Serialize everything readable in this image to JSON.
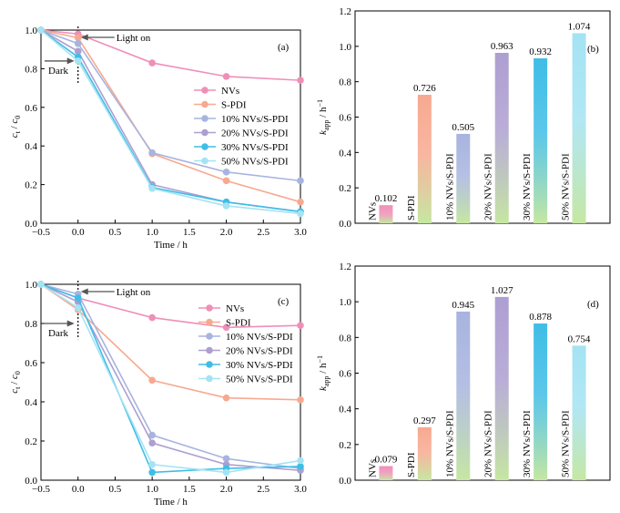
{
  "colors": {
    "NVs": "#ef8fb8",
    "S-PDI": "#f7a990",
    "10% NVs/S-PDI": "#a8b4df",
    "20% NVs/S-PDI": "#ad9fd1",
    "30% NVs/S-PDI": "#3fbde6",
    "50% NVs/S-PDI": "#a4e3f3",
    "bar_bottom": "#c6e7a2"
  },
  "chart_data": [
    {
      "id": "a",
      "panel_label": "(a)",
      "type": "line",
      "xlabel": "Time / h",
      "ylabel_main": "c",
      "ylabel_sub1": "t",
      "ylabel_sep": " / ",
      "ylabel_main2": "c",
      "ylabel_sub2": "0",
      "xlim": [
        -0.5,
        3.0
      ],
      "ylim": [
        0,
        1.0
      ],
      "xticks": [
        "−0.5",
        "0.0",
        "0.5",
        "1.0",
        "1.5",
        "2.0",
        "2.5",
        "3.0"
      ],
      "xtick_values": [
        -0.5,
        0,
        0.5,
        1,
        1.5,
        2,
        2.5,
        3
      ],
      "yticks": [
        "0.0",
        "0.2",
        "0.4",
        "0.6",
        "0.8",
        "1.0"
      ],
      "ytick_values": [
        0,
        0.2,
        0.4,
        0.6,
        0.8,
        1.0
      ],
      "x": [
        -0.5,
        0,
        1,
        2,
        3
      ],
      "annotations": {
        "light_on": "Light on",
        "dark": "Dark"
      },
      "series": [
        {
          "name": "NVs",
          "values": [
            1.0,
            0.98,
            0.83,
            0.76,
            0.74
          ]
        },
        {
          "name": "S-PDI",
          "values": [
            1.0,
            0.96,
            0.36,
            0.22,
            0.11
          ]
        },
        {
          "name": "10% NVs/S-PDI",
          "values": [
            1.0,
            0.93,
            0.365,
            0.265,
            0.22
          ]
        },
        {
          "name": "20% NVs/S-PDI",
          "values": [
            1.0,
            0.89,
            0.2,
            0.11,
            0.06
          ]
        },
        {
          "name": "30% NVs/S-PDI",
          "values": [
            1.0,
            0.86,
            0.185,
            0.11,
            0.06
          ]
        },
        {
          "name": "50% NVs/S-PDI",
          "values": [
            1.0,
            0.84,
            0.18,
            0.09,
            0.05
          ]
        }
      ]
    },
    {
      "id": "b",
      "panel_label": "(b)",
      "type": "bar",
      "ylabel_main": "k",
      "ylabel_sub": "app",
      "ylabel_unit": " / h",
      "ylabel_sup": "−1",
      "ylim": [
        0,
        1.2
      ],
      "yticks": [
        "0.0",
        "0.2",
        "0.4",
        "0.6",
        "0.8",
        "1.0",
        "1.2"
      ],
      "ytick_values": [
        0,
        0.2,
        0.4,
        0.6,
        0.8,
        1.0,
        1.2
      ],
      "categories": [
        "NVs",
        "S-PDI",
        "10% NVs/S-PDI",
        "20% NVs/S-PDI",
        "30% NVs/S-PDI",
        "50% NVs/S-PDI"
      ],
      "values": [
        0.102,
        0.726,
        0.505,
        0.963,
        0.932,
        1.074
      ],
      "value_labels": [
        "0.102",
        "0.726",
        "0.505",
        "0.963",
        "0.932",
        "1.074"
      ]
    },
    {
      "id": "c",
      "panel_label": "(c)",
      "type": "line",
      "xlabel": "Time / h",
      "ylabel_main": "c",
      "ylabel_sub1": "t",
      "ylabel_sep": " / ",
      "ylabel_main2": "c",
      "ylabel_sub2": "0",
      "xlim": [
        -0.5,
        3.0
      ],
      "ylim": [
        0,
        1.0
      ],
      "xticks": [
        "−0.5",
        "0.0",
        "0.5",
        "1.0",
        "1.5",
        "2.0",
        "2.5",
        "3.0"
      ],
      "xtick_values": [
        -0.5,
        0,
        0.5,
        1,
        1.5,
        2,
        2.5,
        3
      ],
      "yticks": [
        "0.0",
        "0.2",
        "0.4",
        "0.6",
        "0.8",
        "1.0"
      ],
      "ytick_values": [
        0,
        0.2,
        0.4,
        0.6,
        0.8,
        1.0
      ],
      "x": [
        -0.5,
        0,
        1,
        2,
        3
      ],
      "annotations": {
        "light_on": "Light on",
        "dark": "Dark"
      },
      "series": [
        {
          "name": "NVs",
          "values": [
            1.0,
            0.93,
            0.83,
            0.78,
            0.79
          ]
        },
        {
          "name": "S-PDI",
          "values": [
            1.0,
            0.87,
            0.51,
            0.42,
            0.41
          ]
        },
        {
          "name": "10% NVs/S-PDI",
          "values": [
            1.0,
            0.95,
            0.23,
            0.11,
            0.06
          ]
        },
        {
          "name": "20% NVs/S-PDI",
          "values": [
            1.0,
            0.91,
            0.19,
            0.08,
            0.05
          ]
        },
        {
          "name": "30% NVs/S-PDI",
          "values": [
            1.0,
            0.93,
            0.04,
            0.06,
            0.07
          ]
        },
        {
          "name": "50% NVs/S-PDI",
          "values": [
            1.0,
            0.88,
            0.08,
            0.04,
            0.1
          ]
        }
      ]
    },
    {
      "id": "d",
      "panel_label": "(d)",
      "type": "bar",
      "ylabel_main": "k",
      "ylabel_sub": "app",
      "ylabel_unit": " / h",
      "ylabel_sup": "−1",
      "ylim": [
        0,
        1.2
      ],
      "yticks": [
        "0.0",
        "0.2",
        "0.4",
        "0.6",
        "0.8",
        "1.0",
        "1.2"
      ],
      "ytick_values": [
        0,
        0.2,
        0.4,
        0.6,
        0.8,
        1.0,
        1.2
      ],
      "categories": [
        "NVs",
        "S-PDI",
        "10% NVs/S-PDI",
        "20% NVs/S-PDI",
        "30% NVs/S-PDI",
        "50% NVs/S-PDI"
      ],
      "values": [
        0.079,
        0.297,
        0.945,
        1.027,
        0.878,
        0.754
      ],
      "value_labels": [
        "0.079",
        "0.297",
        "0.945",
        "1.027",
        "0.878",
        "0.754"
      ]
    }
  ]
}
